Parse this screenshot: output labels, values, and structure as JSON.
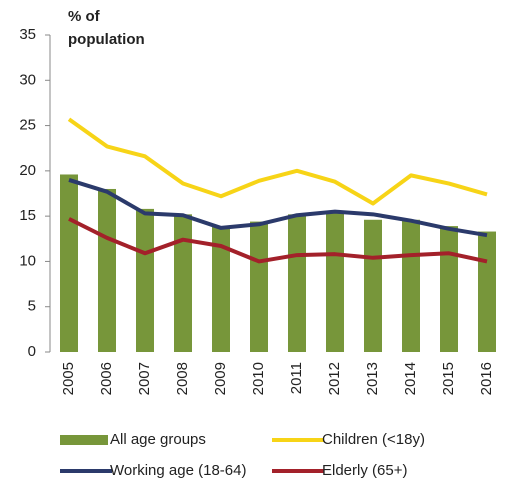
{
  "chart_data": {
    "type": "bar",
    "ylabel": [
      "% of",
      "population"
    ],
    "categories": [
      "2005",
      "2006",
      "2007",
      "2008",
      "2009",
      "2010",
      "2011",
      "2012",
      "2013",
      "2014",
      "2015",
      "2016"
    ],
    "series": [
      {
        "name": "All age groups",
        "type": "bar",
        "color": "#77963a",
        "values": [
          19.6,
          18.0,
          15.8,
          15.2,
          13.9,
          14.4,
          15.2,
          15.5,
          14.6,
          14.6,
          13.9,
          13.3
        ]
      },
      {
        "name": "Children (<18y)",
        "type": "line",
        "color": "#f7d417",
        "values": [
          25.7,
          22.7,
          21.6,
          18.6,
          17.2,
          18.9,
          20.0,
          18.8,
          16.4,
          19.5,
          18.6,
          17.4
        ]
      },
      {
        "name": "Working age (18-64)",
        "type": "line",
        "color": "#2b3a6b",
        "values": [
          19.0,
          17.7,
          15.3,
          15.1,
          13.7,
          14.1,
          15.1,
          15.5,
          15.2,
          14.5,
          13.6,
          12.9
        ]
      },
      {
        "name": "Elderly (65+)",
        "type": "line",
        "color": "#a3212a",
        "values": [
          14.7,
          12.6,
          10.9,
          12.4,
          11.7,
          10.0,
          10.7,
          10.8,
          10.4,
          10.7,
          10.9,
          10.0
        ]
      }
    ],
    "ylim": [
      0,
      35
    ],
    "yticks": [
      0,
      5,
      10,
      15,
      20,
      25,
      30,
      35
    ],
    "grid": false
  }
}
